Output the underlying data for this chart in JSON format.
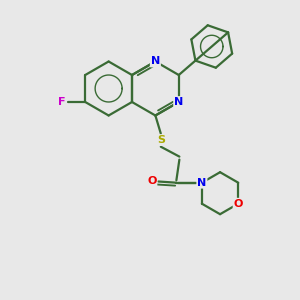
{
  "bg_color": "#e8e8e8",
  "bond_color": "#3a6b35",
  "bond_width": 1.6,
  "N_color": "#0000ee",
  "O_color": "#ee0000",
  "F_color": "#cc00cc",
  "S_color": "#aaaa00",
  "figsize": [
    3.0,
    3.0
  ],
  "dpi": 100,
  "xlim": [
    0,
    10
  ],
  "ylim": [
    0,
    10
  ]
}
